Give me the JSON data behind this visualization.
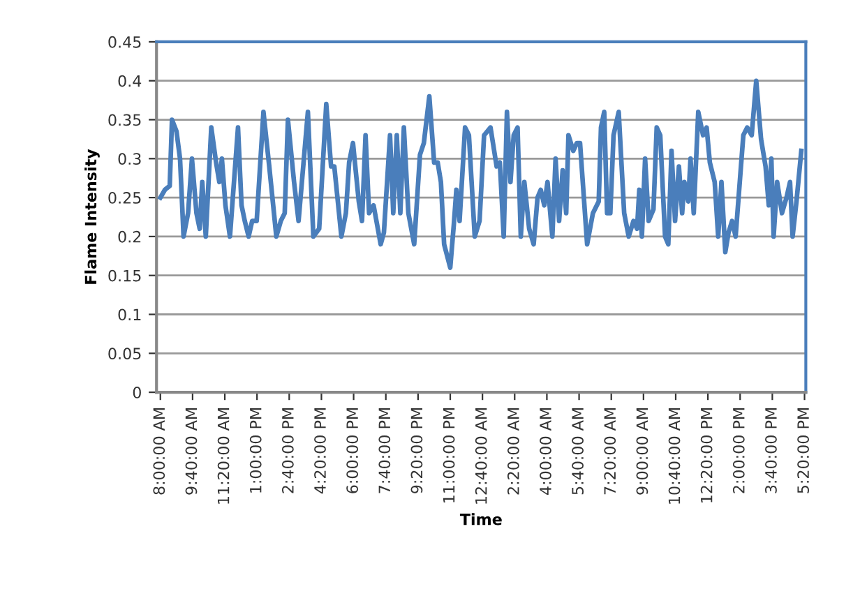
{
  "chart_data": {
    "type": "line",
    "xlabel": "Time",
    "ylabel": "Flame Intensity",
    "series": [
      {
        "color": "#4a7ebb",
        "x": [
          "2000-01-01T08:00",
          "2000-01-01T08:14",
          "2000-01-01T08:29",
          "2000-01-01T08:36",
          "2000-01-01T08:50",
          "2000-01-01T09:01",
          "2000-01-01T09:12",
          "2000-01-01T09:26",
          "2000-01-01T09:38",
          "2000-01-01T09:52",
          "2000-01-01T10:02",
          "2000-01-01T10:10",
          "2000-01-01T10:21",
          "2000-01-01T10:38",
          "2000-01-01T10:53",
          "2000-01-01T11:03",
          "2000-01-01T11:11",
          "2000-01-01T11:22",
          "2000-01-01T11:36",
          "2000-01-01T12:01",
          "2000-01-01T12:12",
          "2000-01-01T12:22",
          "2000-01-01T12:34",
          "2000-01-01T12:45",
          "2000-01-01T12:59",
          "2000-01-01T13:20",
          "2000-01-01T13:38",
          "2000-01-01T14:00",
          "2000-01-01T14:14",
          "2000-01-01T14:26",
          "2000-01-01T14:36",
          "2000-01-01T14:55",
          "2000-01-01T15:09",
          "2000-01-01T15:38",
          "2000-01-01T15:55",
          "2000-01-01T16:13",
          "2000-01-01T16:35",
          "2000-01-01T16:50",
          "2000-01-01T17:00",
          "2000-01-01T17:22",
          "2000-01-01T17:36",
          "2000-01-01T17:46",
          "2000-01-01T17:58",
          "2000-01-01T18:16",
          "2000-01-01T18:26",
          "2000-01-01T18:37",
          "2000-01-01T18:48",
          "2000-01-01T19:02",
          "2000-01-01T19:24",
          "2000-01-01T19:34",
          "2000-01-01T19:53",
          "2000-01-01T20:03",
          "2000-01-01T20:14",
          "2000-01-01T20:25",
          "2000-01-01T20:36",
          "2000-01-01T20:50",
          "2000-01-01T21:08",
          "2000-01-01T21:26",
          "2000-01-01T21:38",
          "2000-01-01T21:55",
          "2000-01-01T22:10",
          "2000-01-01T22:21",
          "2000-01-01T22:31",
          "2000-01-01T22:41",
          "2000-01-01T23:00",
          "2000-01-01T23:11",
          "2000-01-01T23:19",
          "2000-01-01T23:29",
          "2000-01-01T23:46",
          "2000-01-01T23:58",
          "2000-01-02T00:16",
          "2000-01-02T00:31",
          "2000-01-02T00:45",
          "2000-01-02T01:05",
          "2000-01-02T01:24",
          "2000-01-02T01:34",
          "2000-01-02T01:46",
          "2000-01-02T01:56",
          "2000-01-02T02:07",
          "2000-01-02T02:17",
          "2000-01-02T02:29",
          "2000-01-02T02:39",
          "2000-01-02T02:50",
          "2000-01-02T03:05",
          "2000-01-02T03:19",
          "2000-01-02T03:31",
          "2000-01-02T03:41",
          "2000-01-02T03:52",
          "2000-01-02T04:02",
          "2000-01-02T04:17",
          "2000-01-02T04:27",
          "2000-01-02T04:38",
          "2000-01-02T04:49",
          "2000-01-02T05:00",
          "2000-01-02T05:07",
          "2000-01-02T05:22",
          "2000-01-02T05:33",
          "2000-01-02T05:43",
          "2000-01-02T06:05",
          "2000-01-02T06:23",
          "2000-01-02T06:41",
          "2000-01-02T06:48",
          "2000-01-02T06:58",
          "2000-01-02T07:07",
          "2000-01-02T07:17",
          "2000-01-02T07:27",
          "2000-01-02T07:43",
          "2000-01-02T08:00",
          "2000-01-02T08:14",
          "2000-01-02T08:29",
          "2000-01-02T08:40",
          "2000-01-02T08:47",
          "2000-01-02T08:55",
          "2000-01-02T09:05",
          "2000-01-02T09:16",
          "2000-01-02T09:31",
          "2000-01-02T09:41",
          "2000-01-02T09:52",
          "2000-01-02T10:07",
          "2000-01-02T10:17",
          "2000-01-02T10:27",
          "2000-01-02T10:38",
          "2000-01-02T10:50",
          "2000-01-02T11:00",
          "2000-01-02T11:07",
          "2000-01-02T11:19",
          "2000-01-02T11:26",
          "2000-01-02T11:36",
          "2000-01-02T11:50",
          "2000-01-02T12:05",
          "2000-01-02T12:16",
          "2000-01-02T12:26",
          "2000-01-02T12:41",
          "2000-01-02T12:52",
          "2000-01-02T13:02",
          "2000-01-02T13:14",
          "2000-01-02T13:24",
          "2000-01-02T13:35",
          "2000-01-02T13:46",
          "2000-01-02T14:10",
          "2000-01-02T14:22",
          "2000-01-02T14:36",
          "2000-01-02T14:50",
          "2000-01-02T15:05",
          "2000-01-02T15:19",
          "2000-01-02T15:29",
          "2000-01-02T15:37",
          "2000-01-02T15:44",
          "2000-01-02T15:55",
          "2000-01-02T16:10",
          "2000-01-02T16:24",
          "2000-01-02T16:35",
          "2000-01-02T16:43",
          "2000-01-02T16:55",
          "2000-01-02T17:10"
        ],
        "values": [
          0.25,
          0.26,
          0.265,
          0.35,
          0.335,
          0.3,
          0.2,
          0.23,
          0.3,
          0.23,
          0.21,
          0.27,
          0.2,
          0.34,
          0.295,
          0.27,
          0.3,
          0.24,
          0.2,
          0.34,
          0.24,
          0.22,
          0.2,
          0.22,
          0.22,
          0.36,
          0.29,
          0.2,
          0.22,
          0.23,
          0.35,
          0.27,
          0.22,
          0.36,
          0.2,
          0.21,
          0.37,
          0.29,
          0.29,
          0.2,
          0.23,
          0.295,
          0.32,
          0.245,
          0.22,
          0.33,
          0.23,
          0.24,
          0.19,
          0.205,
          0.33,
          0.23,
          0.33,
          0.23,
          0.34,
          0.23,
          0.19,
          0.305,
          0.32,
          0.38,
          0.295,
          0.295,
          0.27,
          0.19,
          0.16,
          0.215,
          0.26,
          0.22,
          0.34,
          0.33,
          0.2,
          0.22,
          0.33,
          0.34,
          0.29,
          0.295,
          0.2,
          0.36,
          0.27,
          0.33,
          0.34,
          0.2,
          0.27,
          0.21,
          0.19,
          0.25,
          0.26,
          0.24,
          0.27,
          0.2,
          0.3,
          0.22,
          0.285,
          0.23,
          0.33,
          0.31,
          0.32,
          0.32,
          0.19,
          0.23,
          0.245,
          0.34,
          0.36,
          0.23,
          0.23,
          0.33,
          0.36,
          0.23,
          0.2,
          0.22,
          0.21,
          0.26,
          0.2,
          0.3,
          0.22,
          0.235,
          0.34,
          0.33,
          0.2,
          0.19,
          0.31,
          0.22,
          0.29,
          0.23,
          0.27,
          0.245,
          0.3,
          0.23,
          0.36,
          0.33,
          0.34,
          0.295,
          0.27,
          0.2,
          0.27,
          0.18,
          0.205,
          0.22,
          0.2,
          0.33,
          0.34,
          0.33,
          0.4,
          0.325,
          0.29,
          0.24,
          0.3,
          0.2,
          0.27,
          0.23,
          0.25,
          0.27,
          0.2,
          0.245,
          0.31
        ]
      }
    ],
    "xlim": [
      "2000-01-01T07:48",
      "2000-01-02T17:24"
    ],
    "xticks": [
      {
        "value": "2000-01-01T08:00",
        "label": "8:00:00 AM"
      },
      {
        "value": "2000-01-01T09:40",
        "label": "9:40:00 AM"
      },
      {
        "value": "2000-01-01T11:20",
        "label": "11:20:00 AM"
      },
      {
        "value": "2000-01-01T13:00",
        "label": "1:00:00 PM"
      },
      {
        "value": "2000-01-01T14:40",
        "label": "2:40:00 PM"
      },
      {
        "value": "2000-01-01T16:20",
        "label": "4:20:00 PM"
      },
      {
        "value": "2000-01-01T18:00",
        "label": "6:00:00 PM"
      },
      {
        "value": "2000-01-01T19:40",
        "label": "7:40:00 PM"
      },
      {
        "value": "2000-01-01T21:20",
        "label": "9:20:00 PM"
      },
      {
        "value": "2000-01-01T23:00",
        "label": "11:00:00 PM"
      },
      {
        "value": "2000-01-02T00:40",
        "label": "12:40:00 AM"
      },
      {
        "value": "2000-01-02T02:20",
        "label": "2:20:00 AM"
      },
      {
        "value": "2000-01-02T04:00",
        "label": "4:00:00 AM"
      },
      {
        "value": "2000-01-02T05:40",
        "label": "5:40:00 AM"
      },
      {
        "value": "2000-01-02T07:20",
        "label": "7:20:00 AM"
      },
      {
        "value": "2000-01-02T09:00",
        "label": "9:00:00 AM"
      },
      {
        "value": "2000-01-02T10:40",
        "label": "10:40:00 AM"
      },
      {
        "value": "2000-01-02T12:20",
        "label": "12:20:00 PM"
      },
      {
        "value": "2000-01-02T14:00",
        "label": "2:00:00 PM"
      },
      {
        "value": "2000-01-02T15:40",
        "label": "3:40:00 PM"
      },
      {
        "value": "2000-01-02T17:20",
        "label": "5:20:00 PM"
      }
    ],
    "ylim": [
      0,
      0.45
    ],
    "yticks": [
      0,
      0.05,
      0.1,
      0.15,
      0.2,
      0.25,
      0.3,
      0.35,
      0.4,
      0.45
    ],
    "grid": "y",
    "marker": "none",
    "line_style": "solid"
  }
}
